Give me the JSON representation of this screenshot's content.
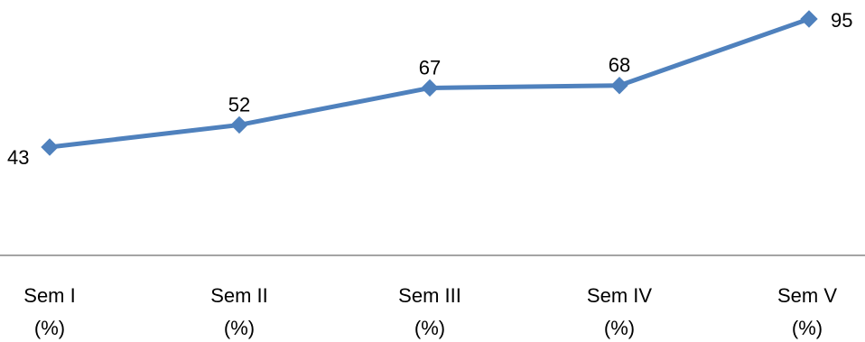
{
  "chart_data": {
    "type": "line",
    "categories": [
      {
        "line1": "Sem I",
        "line2": "(%)"
      },
      {
        "line1": "Sem II",
        "line2": "(%)"
      },
      {
        "line1": "Sem III",
        "line2": "(%)"
      },
      {
        "line1": "Sem IV",
        "line2": "(%)"
      },
      {
        "line1": "Sem V",
        "line2": "(%)"
      }
    ],
    "series": [
      {
        "values": [
          43,
          52,
          67,
          68,
          95
        ],
        "data_labels": [
          "43",
          "52",
          "67",
          "68",
          "95"
        ],
        "color": "#4f81bd",
        "marker": "diamond"
      }
    ],
    "grid": false,
    "legend": "none"
  }
}
